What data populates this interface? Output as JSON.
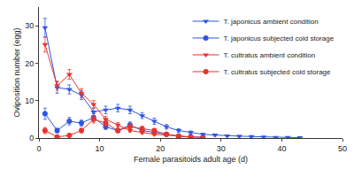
{
  "chart_data": {
    "type": "line",
    "x_label": "Female parasitoids adult age (d)",
    "y_label": "Oviposition number (egg)",
    "xlim": [
      0,
      50
    ],
    "xticks": [
      0,
      10,
      20,
      30,
      40,
      50
    ],
    "ylim": [
      0,
      35
    ],
    "yticks": [
      0,
      10,
      20,
      30
    ],
    "grid": false,
    "legend": "upper right",
    "series": [
      {
        "name": "T. japonicus ambient condition",
        "color": "#2f55e4",
        "marker": "triangle-down",
        "line_style": "solid",
        "x": [
          1,
          3,
          5,
          7,
          9,
          11,
          13,
          15,
          17,
          19,
          21,
          23,
          25,
          27,
          29,
          31,
          33,
          35,
          37,
          39,
          41,
          43
        ],
        "values": [
          29.5,
          13.5,
          13,
          11.5,
          7,
          7.5,
          8,
          7.5,
          6,
          4.5,
          3,
          2,
          1.5,
          1,
          0.8,
          0.6,
          0.5,
          0.4,
          0.3,
          0.2,
          0.2,
          0.1
        ],
        "error": [
          2.5,
          1.5,
          1.2,
          1.2,
          1,
          1,
          1,
          1,
          0.8,
          0.8,
          0.6,
          0.5,
          0.4,
          0.3,
          0.3,
          0.2,
          0.2,
          0.2,
          0.1,
          0.1,
          0.1,
          0.1
        ]
      },
      {
        "name": "T. japonicus subjected cold storage",
        "color": "#2f55e4",
        "marker": "circle",
        "line_style": "solid",
        "x": [
          1,
          3,
          5,
          7,
          9,
          11,
          13,
          15,
          17,
          19,
          21,
          23,
          25,
          27
        ],
        "values": [
          6.5,
          2,
          4.5,
          4,
          5.5,
          3,
          2,
          3.5,
          2,
          1.5,
          1,
          0.5,
          0.3,
          0.2
        ],
        "error": [
          1.5,
          0.6,
          1,
          0.8,
          1,
          0.7,
          0.5,
          0.8,
          0.5,
          0.4,
          0.3,
          0.2,
          0.1,
          0.1
        ]
      },
      {
        "name": "T. cultratus ambient condition",
        "color": "#e8342b",
        "marker": "triangle-down",
        "line_style": "solid",
        "x": [
          1,
          3,
          5,
          7,
          9,
          11,
          13,
          15,
          17,
          19,
          21,
          23,
          25,
          27
        ],
        "values": [
          25,
          14,
          17,
          12,
          9,
          5,
          3.5,
          2,
          1.5,
          1,
          0.8,
          0.5,
          0.3,
          0.2
        ],
        "error": [
          2,
          1.2,
          1.3,
          1.2,
          1,
          0.8,
          0.6,
          0.4,
          0.4,
          0.3,
          0.2,
          0.2,
          0.1,
          0.1
        ]
      },
      {
        "name": "T. cultratus subjected cold storage",
        "color": "#e8342b",
        "marker": "circle",
        "line_style": "solid",
        "x": [
          1,
          3,
          5,
          7,
          9,
          11,
          13,
          15,
          17,
          19,
          21,
          23,
          25
        ],
        "values": [
          2,
          0.3,
          0.7,
          2,
          5,
          4,
          2,
          3,
          2.5,
          2,
          1,
          0.5,
          0.2
        ],
        "error": [
          0.8,
          0.2,
          0.3,
          0.6,
          1,
          0.8,
          0.5,
          0.7,
          0.6,
          0.5,
          0.3,
          0.2,
          0.1
        ]
      }
    ]
  }
}
